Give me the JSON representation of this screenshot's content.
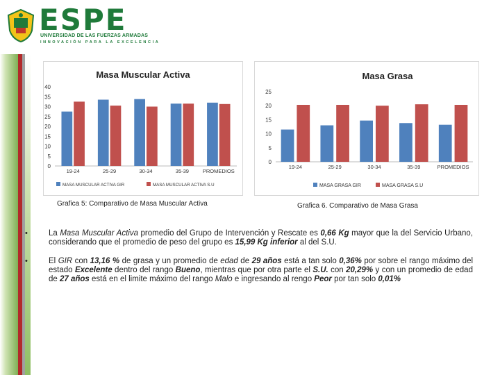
{
  "header": {
    "logo_text": "ESPE",
    "logo_sub1": "UNIVERSIDAD DE LAS FUERZAS ARMADAS",
    "logo_sub2": "INNOVACIÓN PARA LA EXCELENCIA"
  },
  "colors": {
    "gir": "#4f81bd",
    "su": "#c0504d",
    "brand_green": "#1f7a3a",
    "side_red": "#b22a2a"
  },
  "chart_data": [
    {
      "type": "bar",
      "title": "Masa Muscular Activa",
      "categories": [
        "19-24",
        "25-29",
        "30-34",
        "35-39",
        "PROMEDIOS"
      ],
      "series": [
        {
          "name": "MASA MUSCULAR ACTIVA GIR",
          "values": [
            27.5,
            33.5,
            33.8,
            31.5,
            32
          ]
        },
        {
          "name": "MASA MUSCULAR ACTIVA S.U",
          "values": [
            32.5,
            30.5,
            30,
            31.5,
            31.3
          ]
        }
      ],
      "yticks": [
        "0",
        "5",
        "10",
        "15",
        "20",
        "25",
        "30",
        "35",
        "40"
      ],
      "ylim": [
        0,
        40
      ],
      "grid": false,
      "legend": "bottom",
      "caption": "Grafica 5: Comparativo de Masa Muscular Activa"
    },
    {
      "type": "bar",
      "title": "Masa Grasa",
      "categories": [
        "19-24",
        "25-29",
        "30-34",
        "35-39",
        "PROMEDIOS"
      ],
      "series": [
        {
          "name": "MASA GRASA GIR",
          "values": [
            11.5,
            13,
            14.7,
            13.8,
            13.2
          ]
        },
        {
          "name": "MASA GRASA S.U",
          "values": [
            20.3,
            20.3,
            20,
            20.5,
            20.3
          ]
        }
      ],
      "yticks": [
        "0",
        "5",
        "10",
        "15",
        "20",
        "25"
      ],
      "ylim": [
        0,
        25
      ],
      "grid": false,
      "legend": "bottom",
      "caption": "Grafica 6. Comparativo de Masa Grasa"
    }
  ],
  "bullets": [
    {
      "marker": "•",
      "parts": [
        {
          "t": "La "
        },
        {
          "t": "Masa Muscular Activa",
          "s": "em"
        },
        {
          "t": " promedio del Grupo de Intervención y Rescate es "
        },
        {
          "t": "0,66 Kg",
          "s": "strong"
        },
        {
          "t": " mayor que la del Servicio Urbano, considerando que el promedio de peso del grupo es "
        },
        {
          "t": "15,99 Kg inferior",
          "s": "strong"
        },
        {
          "t": " al del S.U."
        }
      ]
    },
    {
      "marker": "•",
      "parts": [
        {
          "t": "El "
        },
        {
          "t": "GIR",
          "s": "em"
        },
        {
          "t": " con "
        },
        {
          "t": "13,16 %",
          "s": "strong"
        },
        {
          "t": " de grasa y un promedio de "
        },
        {
          "t": "edad",
          "s": "em"
        },
        {
          "t": " de "
        },
        {
          "t": "29 años",
          "s": "strong"
        },
        {
          "t": " está a tan solo "
        },
        {
          "t": "0,36%",
          "s": "strong"
        },
        {
          "t": " por sobre el rango máximo del estado "
        },
        {
          "t": "Excelente",
          "s": "strong"
        },
        {
          "t": " dentro del rango "
        },
        {
          "t": "Bueno",
          "s": "strong"
        },
        {
          "t": ", mientras que por otra parte el "
        },
        {
          "t": "S.U.",
          "s": "strong"
        },
        {
          "t": " con "
        },
        {
          "t": "20,29%",
          "s": "strong"
        },
        {
          "t": " y con un promedio de edad de "
        },
        {
          "t": "27 años",
          "s": "strong"
        },
        {
          "t": " está en el limite máximo del rango "
        },
        {
          "t": "Malo",
          "s": "em"
        },
        {
          "t": " e ingresando al rengo "
        },
        {
          "t": "Peor",
          "s": "strong"
        },
        {
          "t": " por tan solo "
        },
        {
          "t": "0,01%",
          "s": "strong"
        }
      ]
    }
  ]
}
